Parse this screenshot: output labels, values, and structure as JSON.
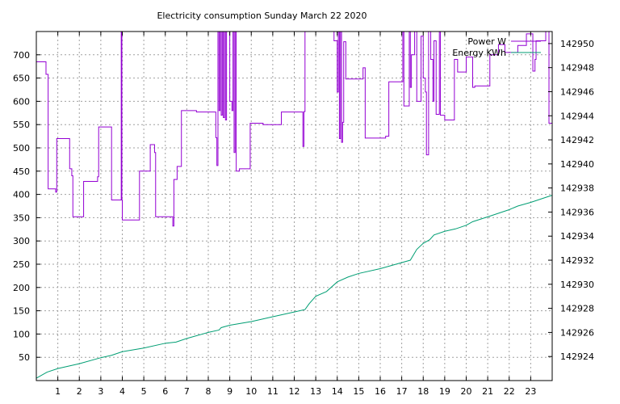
{
  "chart_data": {
    "type": "line",
    "title": "Electricity consumption Sunday March 22 2020",
    "x": {
      "range": [
        0,
        24
      ],
      "ticks": [
        1,
        2,
        3,
        4,
        5,
        6,
        7,
        8,
        9,
        10,
        11,
        12,
        13,
        14,
        15,
        16,
        17,
        18,
        19,
        20,
        21,
        22,
        23
      ],
      "tick_labels": [
        "1",
        "2",
        "3",
        "4",
        "5",
        "6",
        "7",
        "8",
        "9",
        "10",
        "11",
        "12",
        "13",
        "14",
        "15",
        "16",
        "17",
        "18",
        "19",
        "20",
        "21",
        "22",
        "23"
      ]
    },
    "y_left": {
      "range": [
        0,
        750
      ],
      "ticks": [
        50,
        100,
        150,
        200,
        250,
        300,
        350,
        400,
        450,
        500,
        550,
        600,
        650,
        700
      ],
      "tick_labels": [
        "50",
        "100",
        "150",
        "200",
        "250",
        "300",
        "350",
        "400",
        "450",
        "500",
        "550",
        "600",
        "650",
        "700"
      ]
    },
    "y_right": {
      "range": [
        142922,
        142951
      ],
      "ticks": [
        142924,
        142926,
        142928,
        142930,
        142932,
        142934,
        142936,
        142938,
        142940,
        142942,
        142944,
        142946,
        142948,
        142950
      ],
      "tick_labels": [
        "142924",
        "142926",
        "142928",
        "142930",
        "142932",
        "142934",
        "142936",
        "142938",
        "142940",
        "142942",
        "142944",
        "142946",
        "142948",
        "142950"
      ]
    },
    "grid": true,
    "legend_position": "top-right",
    "series": [
      {
        "name": "Power W",
        "axis": "left",
        "color": "#9400d3",
        "step": true,
        "points": [
          [
            0.0,
            685
          ],
          [
            0.45,
            685
          ],
          [
            0.45,
            658
          ],
          [
            0.55,
            658
          ],
          [
            0.55,
            412
          ],
          [
            0.9,
            412
          ],
          [
            0.9,
            405
          ],
          [
            0.95,
            405
          ],
          [
            0.95,
            520
          ],
          [
            1.55,
            520
          ],
          [
            1.55,
            455
          ],
          [
            1.65,
            455
          ],
          [
            1.65,
            440
          ],
          [
            1.7,
            440
          ],
          [
            1.7,
            352
          ],
          [
            2.2,
            352
          ],
          [
            2.2,
            428
          ],
          [
            2.85,
            428
          ],
          [
            2.85,
            438
          ],
          [
            2.9,
            438
          ],
          [
            2.9,
            545
          ],
          [
            3.5,
            545
          ],
          [
            3.5,
            388
          ],
          [
            3.95,
            388
          ],
          [
            3.95,
            750
          ],
          [
            3.98,
            750
          ],
          [
            3.98,
            388
          ],
          [
            4.0,
            388
          ],
          [
            4.0,
            345
          ],
          [
            4.8,
            345
          ],
          [
            4.8,
            450
          ],
          [
            5.3,
            450
          ],
          [
            5.3,
            507
          ],
          [
            5.5,
            507
          ],
          [
            5.5,
            490
          ],
          [
            5.55,
            490
          ],
          [
            5.55,
            352
          ],
          [
            6.35,
            352
          ],
          [
            6.35,
            332
          ],
          [
            6.4,
            332
          ],
          [
            6.4,
            432
          ],
          [
            6.55,
            432
          ],
          [
            6.55,
            460
          ],
          [
            6.75,
            460
          ],
          [
            6.75,
            580
          ],
          [
            7.45,
            580
          ],
          [
            7.45,
            577
          ],
          [
            8.35,
            577
          ],
          [
            8.35,
            522
          ],
          [
            8.4,
            522
          ],
          [
            8.4,
            462
          ],
          [
            8.45,
            462
          ],
          [
            8.45,
            750
          ],
          [
            8.5,
            750
          ],
          [
            8.5,
            580
          ],
          [
            8.55,
            580
          ],
          [
            8.55,
            750
          ],
          [
            8.6,
            750
          ],
          [
            8.6,
            570
          ],
          [
            8.65,
            570
          ],
          [
            8.65,
            750
          ],
          [
            8.7,
            750
          ],
          [
            8.7,
            565
          ],
          [
            8.75,
            565
          ],
          [
            8.75,
            750
          ],
          [
            8.8,
            750
          ],
          [
            8.8,
            560
          ],
          [
            8.85,
            560
          ],
          [
            8.85,
            750
          ],
          [
            9.0,
            750
          ],
          [
            9.0,
            600
          ],
          [
            9.1,
            600
          ],
          [
            9.1,
            580
          ],
          [
            9.15,
            580
          ],
          [
            9.15,
            750
          ],
          [
            9.2,
            750
          ],
          [
            9.2,
            490
          ],
          [
            9.25,
            490
          ],
          [
            9.25,
            750
          ],
          [
            9.3,
            750
          ],
          [
            9.3,
            450
          ],
          [
            9.45,
            450
          ],
          [
            9.45,
            455
          ],
          [
            9.95,
            455
          ],
          [
            9.95,
            553
          ],
          [
            10.55,
            553
          ],
          [
            10.55,
            550
          ],
          [
            11.4,
            550
          ],
          [
            11.4,
            577
          ],
          [
            12.4,
            577
          ],
          [
            12.4,
            503
          ],
          [
            12.45,
            503
          ],
          [
            12.45,
            578
          ],
          [
            12.5,
            578
          ],
          [
            12.5,
            750
          ],
          [
            13.85,
            750
          ],
          [
            13.85,
            730
          ],
          [
            14.0,
            730
          ],
          [
            14.0,
            620
          ],
          [
            14.05,
            620
          ],
          [
            14.05,
            750
          ],
          [
            14.1,
            750
          ],
          [
            14.1,
            520
          ],
          [
            14.15,
            520
          ],
          [
            14.15,
            750
          ],
          [
            14.2,
            750
          ],
          [
            14.2,
            512
          ],
          [
            14.25,
            512
          ],
          [
            14.25,
            555
          ],
          [
            14.3,
            555
          ],
          [
            14.3,
            728
          ],
          [
            14.4,
            728
          ],
          [
            14.4,
            648
          ],
          [
            15.2,
            648
          ],
          [
            15.2,
            672
          ],
          [
            15.3,
            672
          ],
          [
            15.3,
            521
          ],
          [
            16.25,
            521
          ],
          [
            16.25,
            525
          ],
          [
            16.4,
            525
          ],
          [
            16.4,
            642
          ],
          [
            17.05,
            642
          ],
          [
            17.05,
            750
          ],
          [
            17.1,
            750
          ],
          [
            17.1,
            590
          ],
          [
            17.35,
            590
          ],
          [
            17.35,
            750
          ],
          [
            17.4,
            750
          ],
          [
            17.4,
            630
          ],
          [
            17.45,
            630
          ],
          [
            17.45,
            700
          ],
          [
            17.6,
            700
          ],
          [
            17.6,
            750
          ],
          [
            17.7,
            750
          ],
          [
            17.7,
            600
          ],
          [
            17.8,
            600
          ],
          [
            17.8,
            600
          ],
          [
            17.9,
            600
          ],
          [
            17.9,
            740
          ],
          [
            18.0,
            740
          ],
          [
            18.0,
            650
          ],
          [
            18.1,
            650
          ],
          [
            18.1,
            620
          ],
          [
            18.15,
            620
          ],
          [
            18.15,
            485
          ],
          [
            18.25,
            485
          ],
          [
            18.25,
            750
          ],
          [
            18.35,
            750
          ],
          [
            18.35,
            690
          ],
          [
            18.45,
            690
          ],
          [
            18.45,
            600
          ],
          [
            18.5,
            600
          ],
          [
            18.5,
            730
          ],
          [
            18.6,
            730
          ],
          [
            18.6,
            572
          ],
          [
            18.75,
            572
          ],
          [
            18.75,
            750
          ],
          [
            18.8,
            750
          ],
          [
            18.8,
            570
          ],
          [
            19.0,
            570
          ],
          [
            19.0,
            560
          ],
          [
            19.45,
            560
          ],
          [
            19.45,
            690
          ],
          [
            19.6,
            690
          ],
          [
            19.6,
            663
          ],
          [
            20.0,
            663
          ],
          [
            20.0,
            695
          ],
          [
            20.3,
            695
          ],
          [
            20.3,
            630
          ],
          [
            20.4,
            630
          ],
          [
            20.4,
            633
          ],
          [
            21.1,
            633
          ],
          [
            21.1,
            700
          ],
          [
            21.5,
            700
          ],
          [
            21.5,
            722
          ],
          [
            21.8,
            722
          ],
          [
            21.8,
            705
          ],
          [
            22.4,
            705
          ],
          [
            22.4,
            720
          ],
          [
            22.8,
            720
          ],
          [
            22.8,
            745
          ],
          [
            23.1,
            745
          ],
          [
            23.1,
            665
          ],
          [
            23.2,
            665
          ],
          [
            23.2,
            690
          ],
          [
            23.25,
            690
          ],
          [
            23.25,
            730
          ],
          [
            23.7,
            730
          ],
          [
            23.7,
            750
          ],
          [
            23.85,
            750
          ],
          [
            23.85,
            553
          ],
          [
            24.0,
            553
          ]
        ]
      },
      {
        "name": "Energy KWh",
        "axis": "right",
        "color": "#009e73",
        "step": false,
        "points": [
          [
            0.0,
            142922.2
          ],
          [
            0.5,
            142922.7
          ],
          [
            1.0,
            142923.0
          ],
          [
            2.0,
            142923.4
          ],
          [
            3.0,
            142923.9
          ],
          [
            3.5,
            142924.1
          ],
          [
            4.0,
            142924.4
          ],
          [
            5.0,
            142924.7
          ],
          [
            6.0,
            142925.1
          ],
          [
            6.5,
            142925.2
          ],
          [
            7.0,
            142925.5
          ],
          [
            8.0,
            142926.0
          ],
          [
            8.5,
            142926.2
          ],
          [
            8.6,
            142926.4
          ],
          [
            9.0,
            142926.6
          ],
          [
            10.0,
            142926.9
          ],
          [
            11.0,
            142927.3
          ],
          [
            12.0,
            142927.7
          ],
          [
            12.5,
            142927.9
          ],
          [
            12.7,
            142928.4
          ],
          [
            13.0,
            142929.0
          ],
          [
            13.5,
            142929.4
          ],
          [
            14.0,
            142930.2
          ],
          [
            14.5,
            142930.6
          ],
          [
            15.0,
            142930.9
          ],
          [
            16.0,
            142931.3
          ],
          [
            17.0,
            142931.8
          ],
          [
            17.4,
            142932.0
          ],
          [
            17.7,
            142932.9
          ],
          [
            18.0,
            142933.4
          ],
          [
            18.3,
            142933.7
          ],
          [
            18.5,
            142934.1
          ],
          [
            19.0,
            142934.4
          ],
          [
            19.5,
            142934.6
          ],
          [
            20.0,
            142934.9
          ],
          [
            20.3,
            142935.2
          ],
          [
            21.0,
            142935.6
          ],
          [
            22.0,
            142936.2
          ],
          [
            22.4,
            142936.5
          ],
          [
            23.0,
            142936.8
          ],
          [
            24.0,
            142937.4
          ]
        ]
      }
    ]
  }
}
